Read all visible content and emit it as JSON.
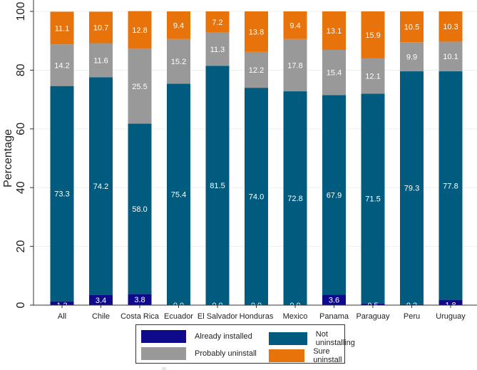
{
  "chart_data": {
    "type": "bar",
    "stacked": true,
    "title": "",
    "xlabel": "",
    "ylabel": "Percentage",
    "ylim": [
      0,
      100
    ],
    "yticks": [
      0,
      20,
      40,
      60,
      80,
      100
    ],
    "grid": true,
    "legend_position": "bottom",
    "categories": [
      "All",
      "Chile",
      "Costa Rica",
      "Ecuador",
      "El Salvador",
      "Honduras",
      "Mexico",
      "Panama",
      "Paraguay",
      "Peru",
      "Uruguay"
    ],
    "series": [
      {
        "name": "Already installed",
        "color": "#0f0a8c",
        "values": [
          1.3,
          3.4,
          3.8,
          0.0,
          0.0,
          0.0,
          0.0,
          3.6,
          0.5,
          0.3,
          1.8
        ],
        "labels": [
          "1.3",
          "3.4",
          "3.8",
          "0.0",
          "0.0",
          "0.0",
          "0.0",
          "3.6",
          "0.5",
          "0.3",
          "1.8"
        ]
      },
      {
        "name": "Not uninstalling",
        "color": "#005b7f",
        "values": [
          73.3,
          74.2,
          58.0,
          75.4,
          81.5,
          74.0,
          72.8,
          67.9,
          71.5,
          79.3,
          77.8
        ],
        "labels": [
          "73.3",
          "74.2",
          "58.0",
          "75.4",
          "81.5",
          "74.0",
          "72.8",
          "67.9",
          "71.5",
          "79.3",
          "77.8"
        ]
      },
      {
        "name": "Probably uninstall",
        "color": "#999999",
        "values": [
          14.2,
          11.6,
          25.5,
          15.2,
          11.3,
          12.2,
          17.8,
          15.4,
          12.1,
          9.9,
          10.1
        ],
        "labels": [
          "14.2",
          "11.6",
          "25.5",
          "15.2",
          "11.3",
          "12.2",
          "17.8",
          "15.4",
          "12.1",
          "9.9",
          "10.1"
        ]
      },
      {
        "name": "Sure uninstall",
        "color": "#e8730a",
        "values": [
          11.1,
          10.7,
          12.8,
          9.4,
          7.2,
          13.8,
          9.4,
          13.1,
          15.9,
          10.5,
          10.3
        ],
        "labels": [
          "11.1",
          "10.7",
          "12.8",
          "9.4",
          "7.2",
          "13.8",
          "9.4",
          "13.1",
          "15.9",
          "10.5",
          "10.3"
        ]
      }
    ]
  },
  "legend": {
    "items": [
      {
        "label": "Already installed",
        "color": "#0f0a8c"
      },
      {
        "label": "Not uninstalling",
        "color": "#005b7f"
      },
      {
        "label": "Probably uninstall",
        "color": "#999999"
      },
      {
        "label": "Sure uninstall",
        "color": "#e8730a"
      }
    ]
  }
}
